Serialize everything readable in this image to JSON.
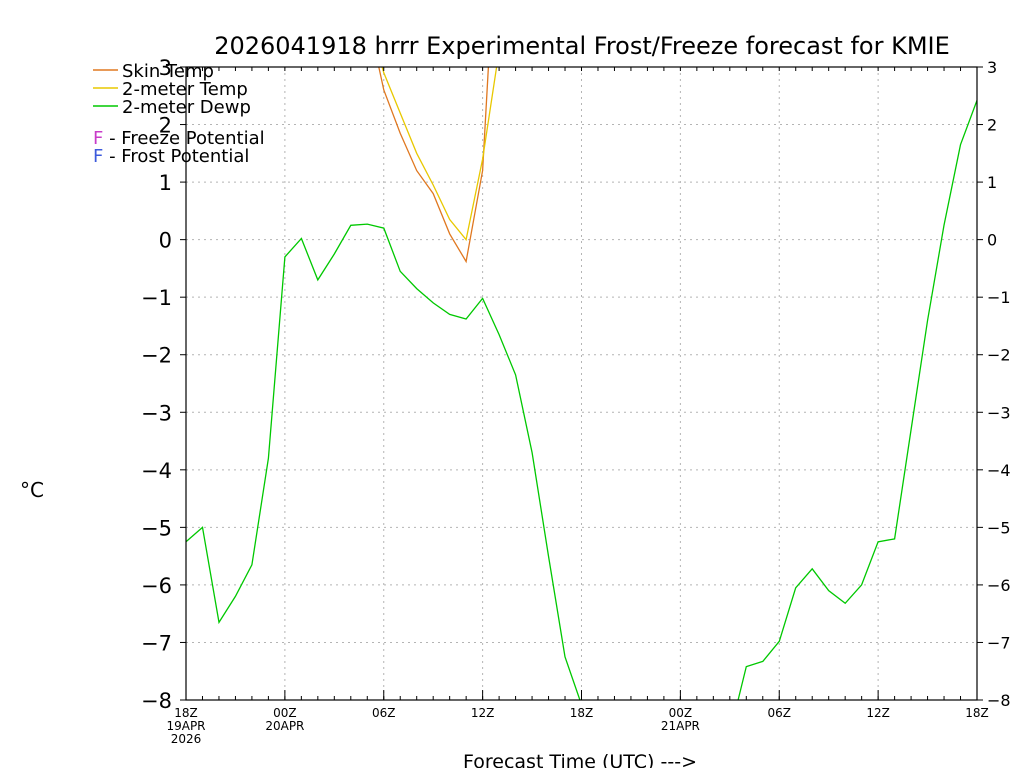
{
  "chart_data": {
    "type": "line",
    "title": "2026041918 hrrr Experimental Frost/Freeze forecast for KMIE",
    "xlabel": "Forecast Time (UTC) --->",
    "ylabel": "°C",
    "ylim": [
      -8,
      3
    ],
    "xlim": [
      0,
      48
    ],
    "grid": true,
    "y_ticks": [
      -8,
      -7,
      -6,
      -5,
      -4,
      -3,
      -2,
      -1,
      0,
      1,
      2,
      3
    ],
    "x_ticks": [
      {
        "x": 0,
        "lines": [
          "18Z",
          "19APR",
          "2026"
        ]
      },
      {
        "x": 6,
        "lines": [
          "00Z",
          "20APR"
        ]
      },
      {
        "x": 12,
        "lines": [
          "06Z"
        ]
      },
      {
        "x": 18,
        "lines": [
          "12Z"
        ]
      },
      {
        "x": 24,
        "lines": [
          "18Z"
        ]
      },
      {
        "x": 30,
        "lines": [
          "00Z",
          "21APR"
        ]
      },
      {
        "x": 36,
        "lines": [
          "06Z"
        ]
      },
      {
        "x": 42,
        "lines": [
          "12Z"
        ]
      },
      {
        "x": 48,
        "lines": [
          "18Z"
        ]
      }
    ],
    "legend": [
      {
        "label": "Skin Temp",
        "color": "#e07820"
      },
      {
        "label": "2-meter Temp",
        "color": "#e8c800"
      },
      {
        "label": "2-meter Dewp",
        "color": "#00c800"
      }
    ],
    "potential_legend": [
      {
        "letter": "F",
        "text": " - Freeze Potential",
        "letter_color": "#c83cc8"
      },
      {
        "letter": "F",
        "text": " - Frost Potential",
        "letter_color": "#3c5adc"
      }
    ],
    "series": [
      {
        "name": "Skin Temp",
        "color": "#e07820",
        "points": [
          [
            11.7,
            3.0
          ],
          [
            12,
            2.6
          ],
          [
            13,
            1.85
          ],
          [
            14,
            1.2
          ],
          [
            15,
            0.8
          ],
          [
            16,
            0.1
          ],
          [
            17,
            -0.38
          ],
          [
            18,
            1.2
          ],
          [
            18.35,
            3.0
          ]
        ]
      },
      {
        "name": "2-meter Temp",
        "color": "#e8c800",
        "points": [
          [
            11.9,
            3.0
          ],
          [
            12,
            2.9
          ],
          [
            13,
            2.2
          ],
          [
            14,
            1.5
          ],
          [
            15,
            0.95
          ],
          [
            16,
            0.35
          ],
          [
            17,
            0.0
          ],
          [
            18,
            1.4
          ],
          [
            18.85,
            3.0
          ]
        ]
      },
      {
        "name": "2-meter Dewp",
        "color": "#00c800",
        "points": [
          [
            0,
            -5.25
          ],
          [
            1,
            -5.0
          ],
          [
            2,
            -6.65
          ],
          [
            3,
            -6.2
          ],
          [
            4,
            -5.65
          ],
          [
            5,
            -3.8
          ],
          [
            6,
            -0.3
          ],
          [
            7,
            0.02
          ],
          [
            8,
            -0.7
          ],
          [
            9,
            -0.25
          ],
          [
            10,
            0.25
          ],
          [
            11,
            0.27
          ],
          [
            12,
            0.2
          ],
          [
            13,
            -0.55
          ],
          [
            14,
            -0.85
          ],
          [
            15,
            -1.1
          ],
          [
            16,
            -1.3
          ],
          [
            17,
            -1.38
          ],
          [
            18,
            -1.02
          ],
          [
            19,
            -1.65
          ],
          [
            20,
            -2.35
          ],
          [
            21,
            -3.7
          ],
          [
            22,
            -5.5
          ],
          [
            23,
            -7.25
          ],
          [
            23.9,
            -8.0
          ]
        ]
      },
      {
        "name": "2-meter Dewp (late)",
        "color": "#00c800",
        "points": [
          [
            33.5,
            -8.0
          ],
          [
            34,
            -7.42
          ],
          [
            35,
            -7.33
          ],
          [
            36,
            -6.98
          ],
          [
            37,
            -6.05
          ],
          [
            38,
            -5.72
          ],
          [
            39,
            -6.1
          ],
          [
            40,
            -6.32
          ],
          [
            41,
            -6.0
          ],
          [
            42,
            -5.25
          ],
          [
            43,
            -5.2
          ],
          [
            44,
            -3.3
          ],
          [
            45,
            -1.4
          ],
          [
            46,
            0.25
          ],
          [
            47,
            1.65
          ],
          [
            48,
            2.42
          ]
        ]
      }
    ]
  }
}
